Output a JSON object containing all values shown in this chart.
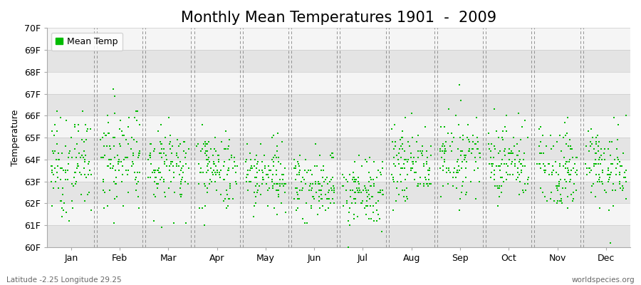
{
  "title": "Monthly Mean Temperatures 1901  -  2009",
  "ylabel": "Temperature",
  "bottom_left_text": "Latitude -2.25 Longitude 29.25",
  "bottom_right_text": "worldspecies.org",
  "legend_label": "Mean Temp",
  "ylim": [
    60,
    70
  ],
  "yticks": [
    60,
    61,
    62,
    63,
    64,
    65,
    66,
    67,
    68,
    69,
    70
  ],
  "ytick_labels": [
    "60F",
    "61F",
    "62F",
    "63F",
    "64F",
    "65F",
    "66F",
    "67F",
    "68F",
    "69F",
    "70F"
  ],
  "months": [
    "Jan",
    "Feb",
    "Mar",
    "Apr",
    "May",
    "Jun",
    "Jul",
    "Aug",
    "Sep",
    "Oct",
    "Nov",
    "Dec"
  ],
  "dot_color": "#00bb00",
  "background_color": "#efefef",
  "band_colors": [
    "#e4e4e4",
    "#f5f5f5"
  ],
  "title_fontsize": 15,
  "label_fontsize": 9,
  "tick_fontsize": 9,
  "monthly_means": [
    63.7,
    64.1,
    63.8,
    63.55,
    63.3,
    62.85,
    62.45,
    63.75,
    64.2,
    63.9,
    63.65,
    63.65
  ],
  "monthly_stds": [
    1.1,
    1.3,
    0.95,
    0.9,
    0.9,
    0.75,
    0.8,
    0.85,
    0.85,
    0.9,
    0.95,
    0.9
  ],
  "n_years": 109,
  "quantize": 0.1
}
